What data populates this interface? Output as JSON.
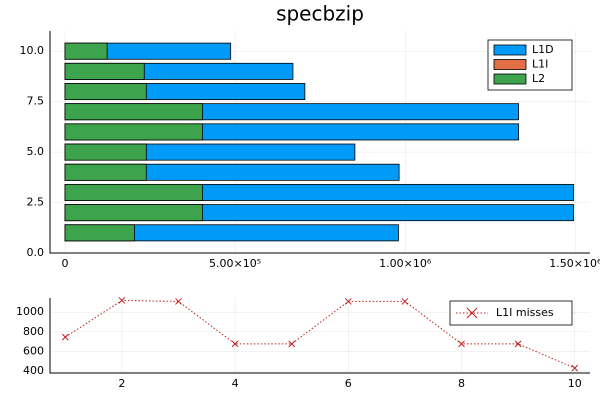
{
  "chart_data": [
    {
      "type": "barh",
      "title": "specbzip",
      "categories": [
        1,
        2,
        3,
        4,
        5,
        6,
        7,
        8,
        9,
        10
      ],
      "series": [
        {
          "name": "L1D",
          "color": "#009af9",
          "values": [
            980000,
            1495000,
            1495000,
            982000,
            852000,
            1333000,
            1333000,
            705000,
            670000,
            487000
          ]
        },
        {
          "name": "L1I",
          "color": "#e26f46",
          "values": [
            746,
            1120,
            1110,
            677,
            677,
            1110,
            1110,
            677,
            677,
            430
          ]
        },
        {
          "name": "L2",
          "color": "#3da44d",
          "values": [
            204000,
            404000,
            404000,
            239000,
            239000,
            404000,
            404000,
            239000,
            233000,
            124000
          ]
        }
      ],
      "xlim": [
        -44000,
        1543000
      ],
      "xticks": [
        0,
        {
          "value": 500000,
          "label": "5.00×10⁵"
        },
        {
          "value": 1000000,
          "label": "1.00×10⁶"
        },
        {
          "value": 1500000,
          "label": "1.50×10⁶"
        }
      ],
      "ylim": [
        0,
        11
      ],
      "yticks": [
        {
          "value": 0,
          "label": "0.0"
        },
        {
          "value": 2.5,
          "label": "2.5"
        },
        {
          "value": 5,
          "label": "5.0"
        },
        {
          "value": 7.5,
          "label": "7.5"
        },
        {
          "value": 10,
          "label": "10.0"
        }
      ],
      "grid": true,
      "legend": "top-right"
    },
    {
      "type": "line",
      "x": [
        1,
        2,
        3,
        4,
        5,
        6,
        7,
        8,
        9,
        10
      ],
      "series": [
        {
          "name": "L1I misses",
          "color": "#c0201e",
          "values": [
            746,
            1120,
            1110,
            677,
            677,
            1110,
            1110,
            677,
            677,
            430
          ]
        }
      ],
      "xlim": [
        0.73,
        10.27
      ],
      "xticks": [
        2,
        4,
        6,
        8,
        10
      ],
      "ylim": [
        380,
        1145
      ],
      "yticks": [
        400,
        600,
        800,
        1000
      ],
      "grid": true,
      "legend": "top-right"
    }
  ]
}
